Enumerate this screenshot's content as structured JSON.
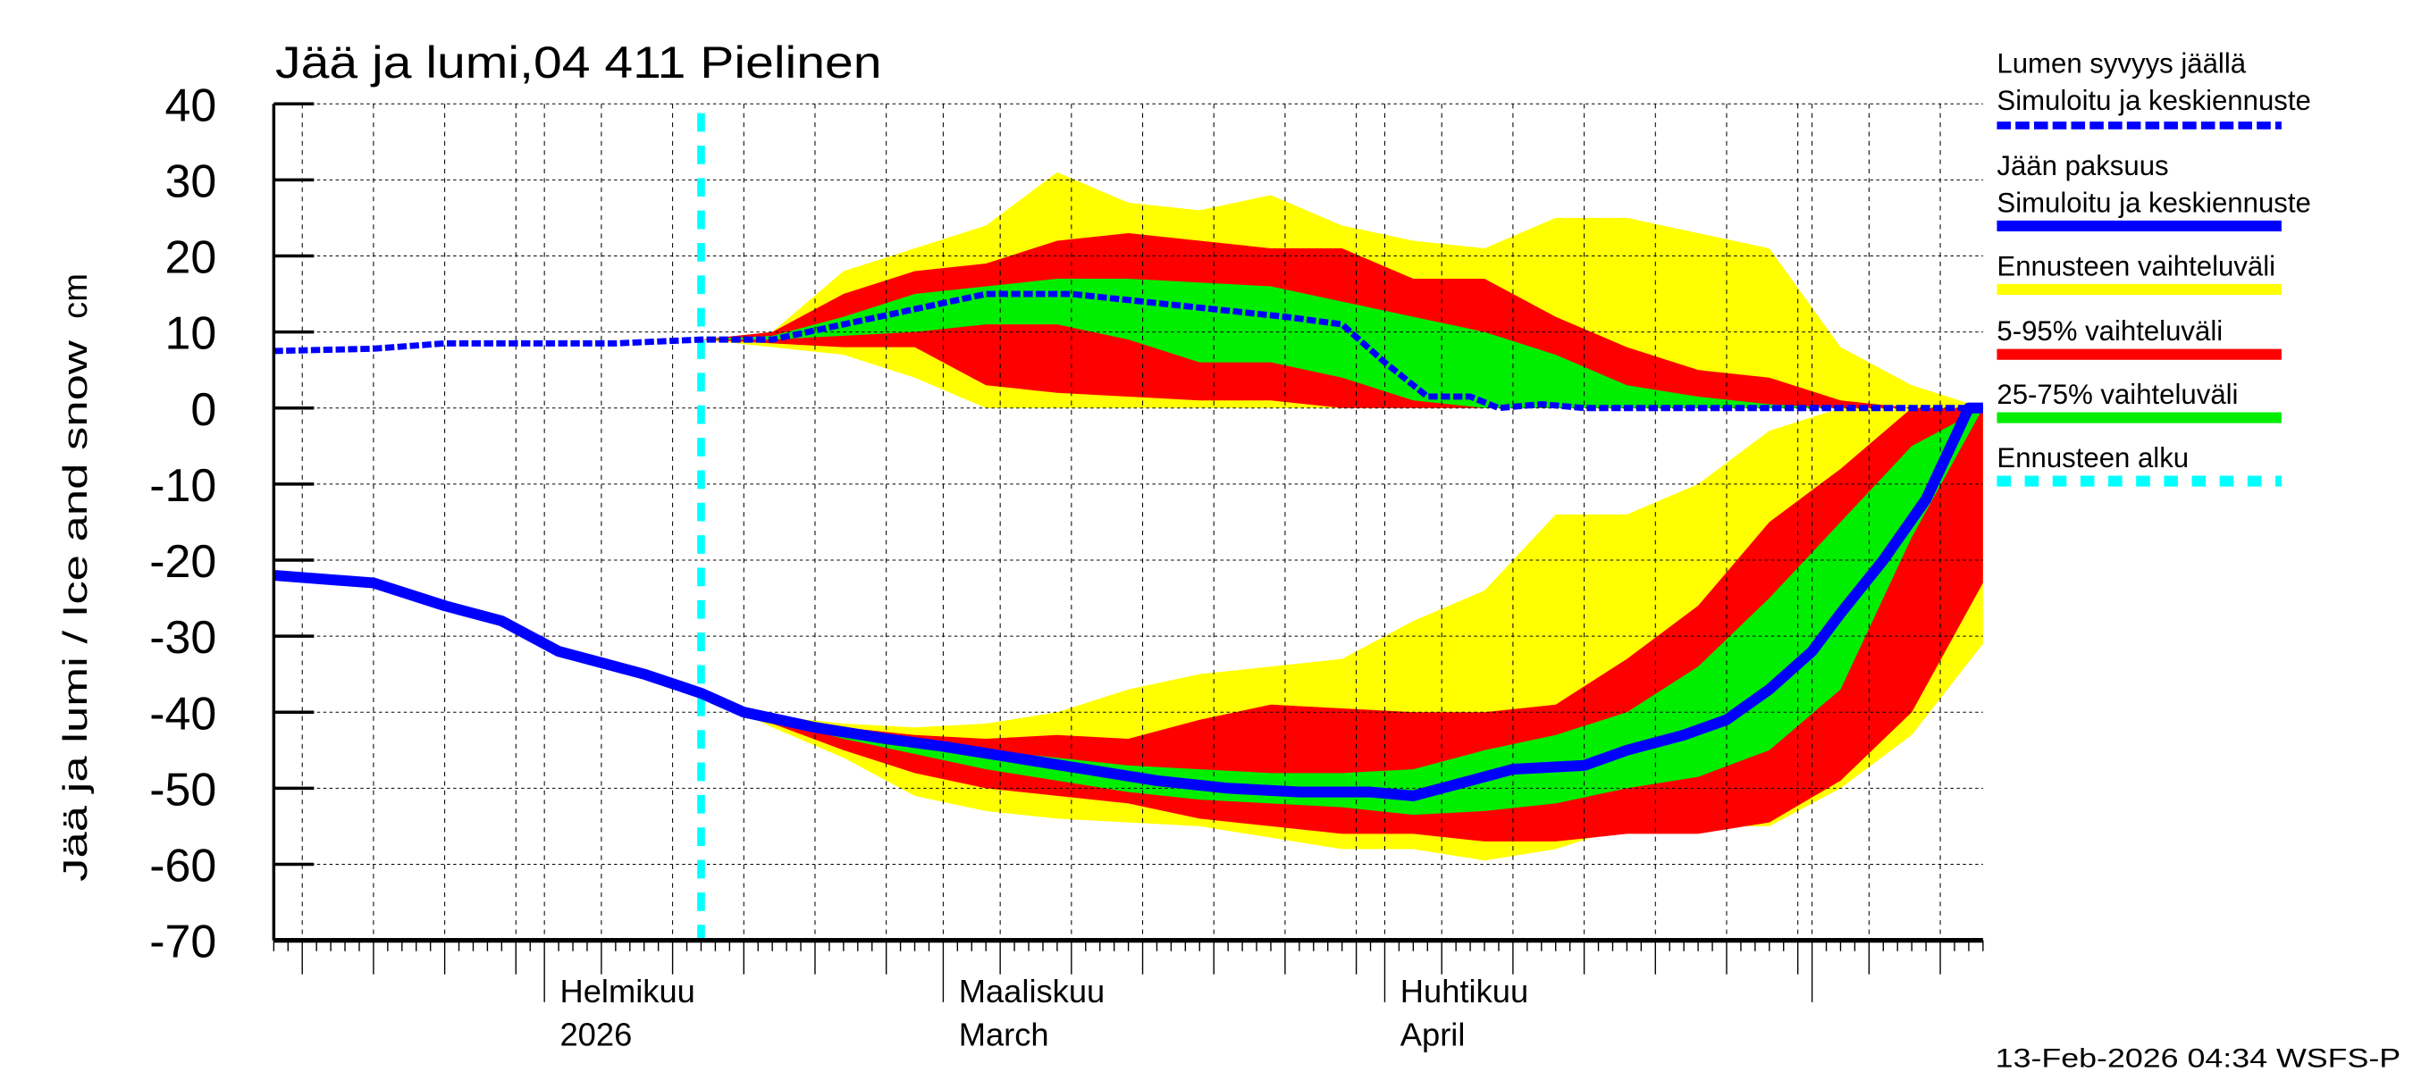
{
  "chart_data": {
    "type": "area",
    "title": "Jää ja lumi,04 411 Pielinen",
    "ylabel": "Jää ja lumi / Ice and snow",
    "yunit": "cm",
    "ylim": [
      -70,
      40
    ],
    "yticks": [
      40,
      30,
      20,
      10,
      0,
      -10,
      -20,
      -30,
      -40,
      -50,
      -60,
      -70
    ],
    "xlim": [
      "2026-01-13",
      "2026-05-13"
    ],
    "grid": true,
    "legend_position": "right",
    "month_labels": [
      {
        "date": "2026-02-01",
        "line1": "Helmikuu",
        "line2": "2026"
      },
      {
        "date": "2026-03-01",
        "line1": "Maaliskuu",
        "line2": "March"
      },
      {
        "date": "2026-04-01",
        "line1": "Huhtikuu",
        "line2": "April"
      }
    ],
    "forecast_start": "2026-02-12",
    "colors": {
      "snow": "#0000ff",
      "ice": "#0000ff",
      "range": "#ffff00",
      "p5_95": "#ff0000",
      "p25_75": "#00ee00",
      "forecast_start": "#00ffff"
    },
    "series": [
      {
        "name": "Lumen syvyys jäällä / Simuloitu ja keskiennuste",
        "style": "dotted",
        "x": [
          "2026-01-13",
          "2026-01-20",
          "2026-01-25",
          "2026-02-01",
          "2026-02-06",
          "2026-02-12",
          "2026-02-17",
          "2026-02-22",
          "2026-02-27",
          "2026-03-04",
          "2026-03-10",
          "2026-03-15",
          "2026-03-20",
          "2026-03-25",
          "2026-03-29",
          "2026-04-01",
          "2026-04-04",
          "2026-04-07",
          "2026-04-09",
          "2026-04-12",
          "2026-04-15",
          "2026-05-13"
        ],
        "y": [
          7.5,
          7.8,
          8.5,
          8.5,
          8.5,
          9,
          9,
          11,
          13,
          15,
          15,
          14,
          13,
          12,
          11,
          6,
          1.5,
          1.5,
          0,
          0.5,
          0,
          0
        ]
      },
      {
        "name": "Jään paksuus / Simuloitu ja keskiennuste",
        "style": "solid",
        "x": [
          "2026-01-13",
          "2026-01-20",
          "2026-01-25",
          "2026-01-29",
          "2026-02-02",
          "2026-02-05",
          "2026-02-08",
          "2026-02-12",
          "2026-02-15",
          "2026-02-20",
          "2026-02-25",
          "2026-03-01",
          "2026-03-06",
          "2026-03-11",
          "2026-03-16",
          "2026-03-21",
          "2026-03-26",
          "2026-03-31",
          "2026-04-03",
          "2026-04-06",
          "2026-04-10",
          "2026-04-15",
          "2026-04-18",
          "2026-04-22",
          "2026-04-25",
          "2026-04-28",
          "2026-05-01",
          "2026-05-03",
          "2026-05-06",
          "2026-05-09",
          "2026-05-11",
          "2026-05-12",
          "2026-05-13"
        ],
        "y": [
          -22,
          -23,
          -26,
          -28,
          -32,
          -33.5,
          -35,
          -37.5,
          -40,
          -42,
          -43.5,
          -44.5,
          -46,
          -47.5,
          -49,
          -50,
          -50.5,
          -50.5,
          -51,
          -49.5,
          -47.5,
          -47,
          -45,
          -43,
          -41,
          -37,
          -32,
          -27,
          -20,
          -12,
          -4,
          0,
          0
        ]
      }
    ],
    "bands": {
      "x": [
        "2026-02-12",
        "2026-02-17",
        "2026-02-22",
        "2026-02-27",
        "2026-03-04",
        "2026-03-09",
        "2026-03-14",
        "2026-03-19",
        "2026-03-24",
        "2026-03-29",
        "2026-04-03",
        "2026-04-08",
        "2026-04-13",
        "2026-04-18",
        "2026-04-23",
        "2026-04-28",
        "2026-05-03",
        "2026-05-08",
        "2026-05-13"
      ],
      "snow": {
        "range": {
          "upper": [
            9,
            10,
            18,
            21,
            24,
            31,
            27,
            26,
            28,
            24,
            22,
            21,
            25,
            25,
            23,
            21,
            8,
            3,
            0
          ],
          "lower": [
            9,
            8,
            7,
            4,
            0,
            0,
            0,
            0,
            0,
            0,
            0,
            0,
            0,
            0,
            0,
            0,
            0,
            0,
            0
          ]
        },
        "p5_95": {
          "upper": [
            9,
            10,
            15,
            18,
            19,
            22,
            23,
            22,
            21,
            21,
            17,
            17,
            12,
            8,
            5,
            4,
            1,
            0,
            0
          ],
          "lower": [
            9,
            8.5,
            8,
            8,
            3,
            2,
            1.5,
            1,
            1,
            0,
            0,
            0,
            0,
            0,
            0,
            0,
            0,
            0,
            0
          ]
        },
        "p25_75": {
          "upper": [
            9,
            9.5,
            12,
            15,
            16,
            17,
            17,
            16.5,
            16,
            14,
            12,
            10,
            7,
            3,
            1.5,
            0.5,
            0,
            0,
            0
          ],
          "lower": [
            9,
            9,
            9.5,
            10,
            11,
            11,
            9,
            6,
            6,
            4,
            1,
            0,
            0,
            0,
            0,
            0,
            0,
            0,
            0
          ]
        }
      },
      "ice": {
        "range": {
          "upper": [
            -37.5,
            -40.5,
            -41.5,
            -42,
            -41.5,
            -40,
            -37,
            -35,
            -34,
            -33,
            -28,
            -24,
            -14,
            -14,
            -10,
            -3,
            0,
            0,
            0
          ],
          "lower": [
            -37.5,
            -42,
            -46,
            -51,
            -53,
            -54,
            -54.5,
            -55,
            -56.5,
            -58,
            -58,
            -59.5,
            -58,
            -55,
            -55,
            -55,
            -50,
            -43,
            -31
          ]
        },
        "p5_95": {
          "upper": [
            -37.5,
            -40.5,
            -42,
            -43,
            -43.5,
            -43,
            -43.5,
            -41,
            -39,
            -39.5,
            -40,
            -40,
            -39,
            -33,
            -26,
            -15,
            -8,
            0,
            0
          ],
          "lower": [
            -37.5,
            -41.5,
            -45,
            -48,
            -50,
            -51,
            -52,
            -54,
            -55,
            -56,
            -56,
            -57,
            -57,
            -56,
            -56,
            -54.5,
            -49,
            -40,
            -23
          ]
        },
        "p25_75": {
          "upper": [
            -37.5,
            -41,
            -42.5,
            -44,
            -45,
            -46,
            -47,
            -47.5,
            -48,
            -48,
            -47.5,
            -45,
            -43,
            -40,
            -34,
            -25,
            -15,
            -5,
            0
          ],
          "lower": [
            -37.5,
            -41,
            -43.5,
            -45.5,
            -47.5,
            -49,
            -50.5,
            -51.5,
            -52,
            -52.5,
            -53.5,
            -53,
            -52,
            -50,
            -48.5,
            -45,
            -37,
            -17,
            0
          ]
        }
      }
    },
    "legend": [
      {
        "line1": "Lumen syvyys jäällä",
        "line2": "Simuloitu ja keskiennuste",
        "key": "snow",
        "style": "dotted"
      },
      {
        "line1": "Jään paksuus",
        "line2": "Simuloitu ja keskiennuste",
        "key": "ice",
        "style": "solid"
      },
      {
        "line1": "Ennusteen vaihteluväli",
        "key": "range",
        "style": "band"
      },
      {
        "line1": "5-95% vaihteluväli",
        "key": "p5_95",
        "style": "band"
      },
      {
        "line1": "25-75% vaihteluväli",
        "key": "p25_75",
        "style": "band"
      },
      {
        "line1": "Ennusteen alku",
        "key": "forecast_start",
        "style": "dashed"
      }
    ],
    "timestamp": "13-Feb-2026 04:34 WSFS-P"
  }
}
